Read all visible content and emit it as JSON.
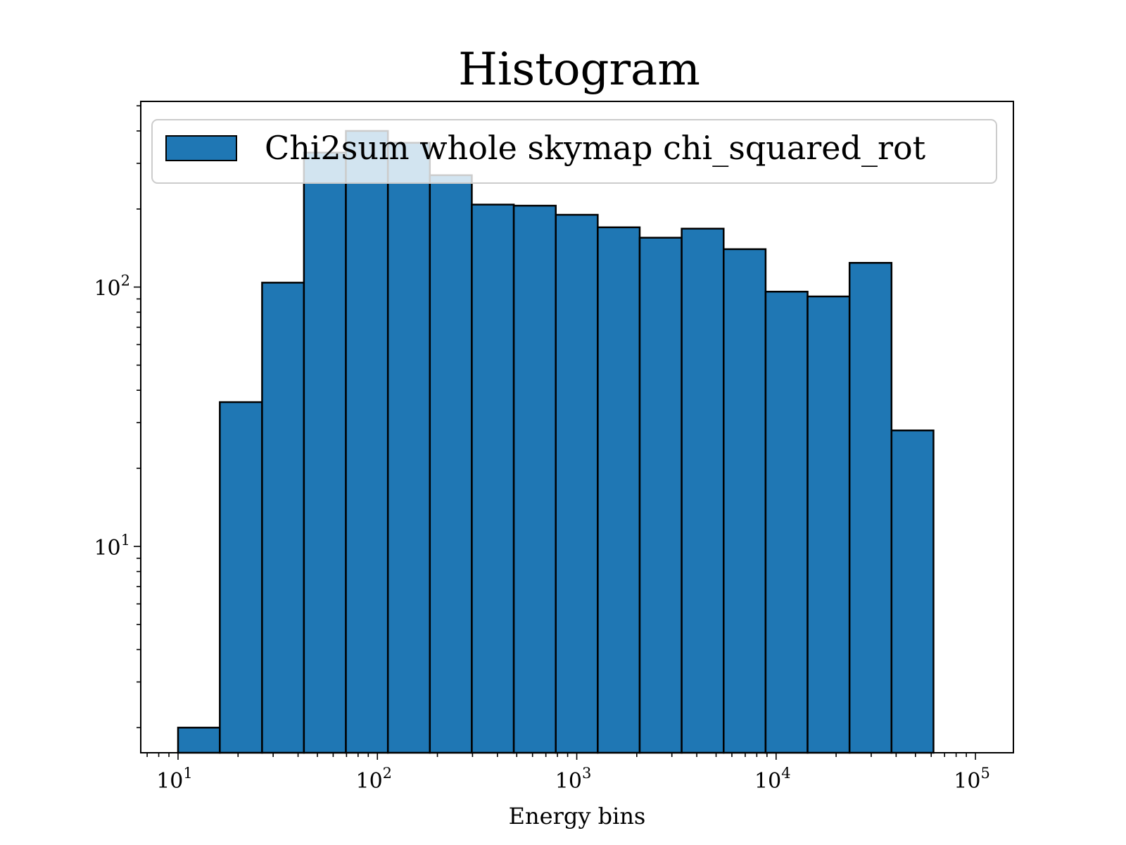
{
  "chart_data": {
    "type": "bar",
    "title": "Histogram",
    "xlabel": "Energy bins",
    "ylabel": "",
    "x_scale": "log",
    "y_scale": "log",
    "xlim": [
      6.5,
      155000
    ],
    "ylim": [
      1.6,
      520
    ],
    "grid": false,
    "legend_position": "top",
    "x_ticks": [
      {
        "value": 10,
        "base": "10",
        "exp": "1"
      },
      {
        "value": 100,
        "base": "10",
        "exp": "2"
      },
      {
        "value": 1000,
        "base": "10",
        "exp": "3"
      },
      {
        "value": 10000,
        "base": "10",
        "exp": "4"
      },
      {
        "value": 100000,
        "base": "10",
        "exp": "5"
      }
    ],
    "y_ticks": [
      {
        "value": 10,
        "base": "10",
        "exp": "1"
      },
      {
        "value": 100,
        "base": "10",
        "exp": "2"
      }
    ],
    "bin_edges": [
      10,
      16.2,
      26.4,
      42.8,
      69.5,
      112.9,
      183.3,
      297.6,
      483.3,
      784.8,
      1274.3,
      2069.1,
      3359.8,
      5455.6,
      8858.7,
      14384.5,
      23357.2,
      37926.9,
      61584.8
    ],
    "series": [
      {
        "name": "Chi2sum whole skymap chi_squared_rot",
        "color": "#1f77b4",
        "edgecolor": "#000000",
        "values": [
          2,
          36,
          104,
          330,
          400,
          360,
          270,
          208,
          206,
          190,
          170,
          155,
          168,
          140,
          96,
          92,
          124,
          28
        ]
      }
    ]
  }
}
